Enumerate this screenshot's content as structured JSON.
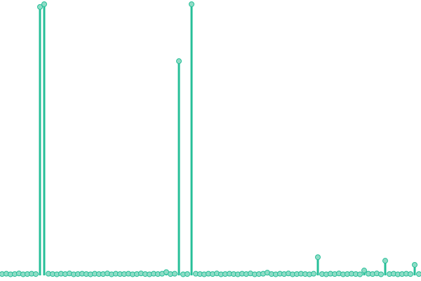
{
  "chart_data": {
    "type": "lollipop",
    "color": "#26bf98",
    "marker_fill": "#8fdcc6",
    "xlim": [
      0,
      600
    ],
    "ylim": [
      0,
      100
    ],
    "x": [
      3,
      9,
      15,
      21,
      27,
      33,
      39,
      45,
      51,
      57,
      63,
      69,
      75,
      81,
      87,
      93,
      99,
      105,
      111,
      117,
      123,
      129,
      135,
      141,
      147,
      153,
      159,
      165,
      171,
      177,
      183,
      189,
      195,
      201,
      207,
      213,
      219,
      225,
      231,
      237,
      243,
      249,
      255,
      261,
      267,
      273,
      279,
      285,
      291,
      297,
      303,
      309,
      315,
      321,
      327,
      333,
      339,
      345,
      351,
      357,
      363,
      369,
      375,
      381,
      387,
      393,
      399,
      405,
      411,
      417,
      423,
      429,
      435,
      441,
      447,
      453,
      459,
      465,
      471,
      477,
      483,
      489,
      495,
      501,
      507,
      513,
      519,
      525,
      531,
      537,
      543,
      549,
      555,
      561,
      567,
      573,
      579,
      585,
      591,
      597
    ],
    "values": [
      0.5,
      0.6,
      0.4,
      0.5,
      0.7,
      0.4,
      0.5,
      0.6,
      0.5,
      99,
      100,
      0.6,
      0.5,
      0.4,
      0.6,
      0.5,
      0.7,
      0.4,
      0.5,
      0.6,
      0.5,
      0.4,
      0.6,
      0.5,
      0.5,
      0.7,
      0.4,
      0.6,
      0.5,
      0.5,
      0.6,
      0.4,
      0.5,
      0.7,
      0.5,
      0.4,
      0.6,
      0.5,
      0.6,
      1.2,
      0.5,
      0.6,
      79,
      0.4,
      0.5,
      100,
      0.6,
      0.5,
      0.4,
      0.6,
      0.5,
      0.7,
      0.4,
      0.5,
      0.6,
      0.5,
      0.4,
      0.6,
      0.5,
      0.7,
      0.4,
      0.5,
      0.6,
      1,
      0.5,
      0.4,
      0.6,
      0.5,
      0.7,
      0.4,
      0.5,
      0.6,
      0.5,
      0.4,
      0.6,
      6.7,
      0.5,
      0.4,
      0.6,
      0.5,
      0.7,
      0.4,
      0.5,
      0.6,
      0.5,
      0.4,
      1.8,
      0.6,
      0.5,
      0.7,
      0.4,
      5.4,
      0.5,
      0.6,
      0.4,
      0.5,
      0.6,
      0.5,
      3.9,
      0.5
    ]
  }
}
